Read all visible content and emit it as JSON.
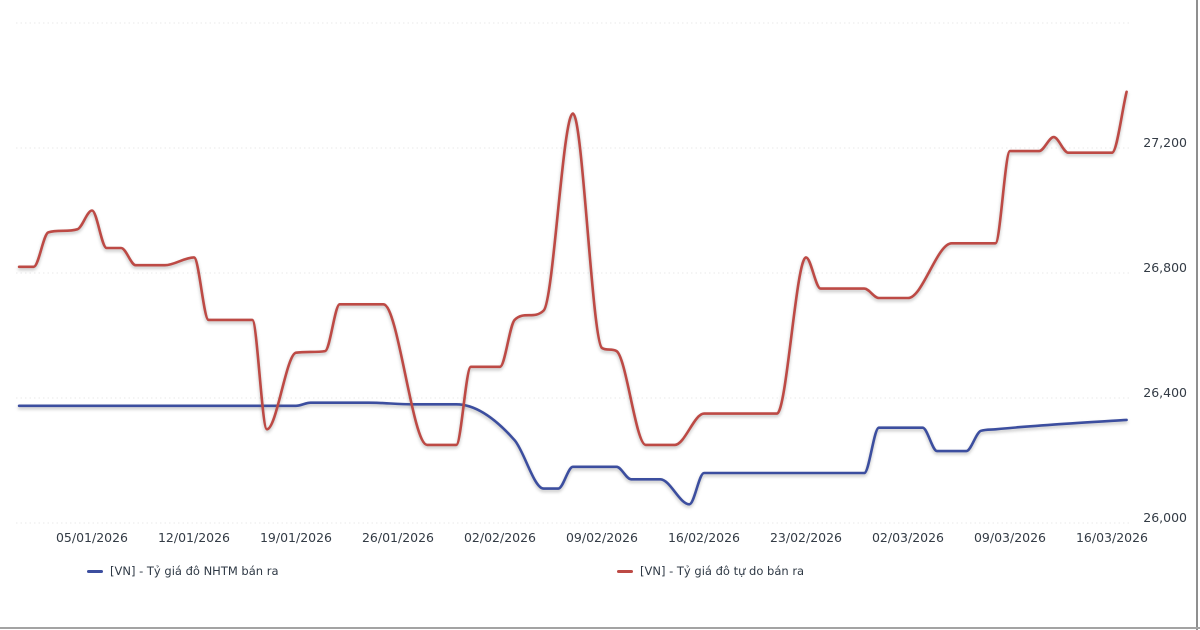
{
  "chart_data": {
    "type": "line",
    "title": "",
    "grid": "horizontal-dotted",
    "legend_position": "bottom",
    "x_axis": {
      "tick_labels": [
        "05/01/2026",
        "12/01/2026",
        "19/01/2026",
        "26/01/2026",
        "02/02/2026",
        "09/02/2026",
        "16/02/2026",
        "23/02/2026",
        "02/03/2026",
        "09/03/2026",
        "16/03/2026"
      ]
    },
    "y_axis": {
      "min": 26000,
      "max": 27600,
      "grid_values": [
        27600,
        27200,
        26800,
        26400,
        26000
      ],
      "tick_values": [
        27200,
        26800,
        26400,
        26000
      ],
      "tick_labels": [
        "27,200",
        "26,800",
        "26,400",
        "26,000"
      ]
    },
    "series": [
      {
        "name": "[VN] - Tỷ giá đô NHTM bán ra",
        "color": "#3c4e9f",
        "points": [
          [
            "31/12/2025",
            26375
          ],
          [
            "19/01/2026",
            26375
          ],
          [
            "20/01/2026",
            26385
          ],
          [
            "24/01/2026",
            26385
          ],
          [
            "27/01/2026",
            26380
          ],
          [
            "30/01/2026",
            26380
          ],
          [
            "03/02/2026",
            26265
          ],
          [
            "05/02/2026",
            26110
          ],
          [
            "06/02/2026",
            26110
          ],
          [
            "07/02/2026",
            26180
          ],
          [
            "10/02/2026",
            26180
          ],
          [
            "11/02/2026",
            26140
          ],
          [
            "13/02/2026",
            26140
          ],
          [
            "15/02/2026",
            26060
          ],
          [
            "16/02/2026",
            26160
          ],
          [
            "27/02/2026",
            26160
          ],
          [
            "28/02/2026",
            26305
          ],
          [
            "03/03/2026",
            26305
          ],
          [
            "04/03/2026",
            26230
          ],
          [
            "06/03/2026",
            26230
          ],
          [
            "07/03/2026",
            26295
          ],
          [
            "08/03/2026",
            26300
          ],
          [
            "12/03/2026",
            26315
          ],
          [
            "17/03/2026",
            26330
          ]
        ]
      },
      {
        "name": "[VN] - Tỷ giá đô tự do bán ra",
        "color": "#bd4a45",
        "points": [
          [
            "31/12/2025",
            26820
          ],
          [
            "01/01/2026",
            26820
          ],
          [
            "02/01/2026",
            26930
          ],
          [
            "04/01/2026",
            26940
          ],
          [
            "05/01/2026",
            27000
          ],
          [
            "06/01/2026",
            26880
          ],
          [
            "07/01/2026",
            26880
          ],
          [
            "08/01/2026",
            26825
          ],
          [
            "10/01/2026",
            26825
          ],
          [
            "12/01/2026",
            26850
          ],
          [
            "13/01/2026",
            26650
          ],
          [
            "16/01/2026",
            26650
          ],
          [
            "17/01/2026",
            26300
          ],
          [
            "19/01/2026",
            26545
          ],
          [
            "21/01/2026",
            26550
          ],
          [
            "22/01/2026",
            26700
          ],
          [
            "25/01/2026",
            26700
          ],
          [
            "28/01/2026",
            26250
          ],
          [
            "30/01/2026",
            26250
          ],
          [
            "31/01/2026",
            26500
          ],
          [
            "02/02/2026",
            26500
          ],
          [
            "03/02/2026",
            26650
          ],
          [
            "05/02/2026",
            26680
          ],
          [
            "07/02/2026",
            27310
          ],
          [
            "09/02/2026",
            26560
          ],
          [
            "10/02/2026",
            26550
          ],
          [
            "12/02/2026",
            26250
          ],
          [
            "14/02/2026",
            26250
          ],
          [
            "16/02/2026",
            26350
          ],
          [
            "21/02/2026",
            26350
          ],
          [
            "23/02/2026",
            26850
          ],
          [
            "24/02/2026",
            26750
          ],
          [
            "27/02/2026",
            26750
          ],
          [
            "28/02/2026",
            26720
          ],
          [
            "02/03/2026",
            26720
          ],
          [
            "05/03/2026",
            26895
          ],
          [
            "08/03/2026",
            26895
          ],
          [
            "09/03/2026",
            27190
          ],
          [
            "11/03/2026",
            27190
          ],
          [
            "12/03/2026",
            27235
          ],
          [
            "13/03/2026",
            27185
          ],
          [
            "16/03/2026",
            27185
          ],
          [
            "17/03/2026",
            27380
          ]
        ]
      }
    ]
  },
  "legend": {
    "items": [
      {
        "label": "[VN] - Tỷ giá đô NHTM bán ra"
      },
      {
        "label": "[VN] - Tỷ giá đô tự do bán ra"
      }
    ]
  }
}
